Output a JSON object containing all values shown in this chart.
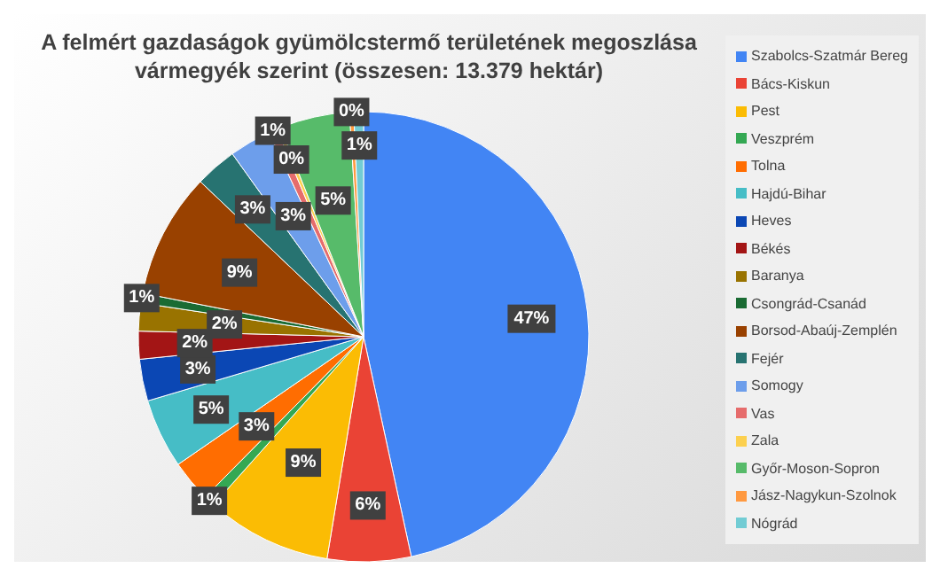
{
  "chart_data": {
    "type": "pie",
    "title": "A felmért gazdaságok gyümölcstermő területének megoszlása vármegyék szerint (összesen: 13.379 hektár)",
    "categories": [
      "Szabolcs-Szatmár Bereg",
      "Bács-Kiskun",
      "Pest",
      "Veszprém",
      "Tolna",
      "Hajdú-Bihar",
      "Heves",
      "Békés",
      "Baranya",
      "Csongrád-Csanád",
      "Borsod-Abaúj-Zemplén",
      "Fejér",
      "Somogy",
      "Vas",
      "Zala",
      "Győr-Moson-Sopron",
      "Jász-Nagykun-Szolnok",
      "Nógrád"
    ],
    "values": [
      46.6,
      6,
      9,
      0.8,
      3,
      5,
      3,
      2,
      2,
      0.7,
      9,
      3,
      3,
      0.6,
      0.3,
      5,
      0.3,
      0.7
    ],
    "value_labels": [
      "47%",
      "6%",
      "9%",
      "1%",
      "3%",
      "5%",
      "3%",
      "2%",
      "2%",
      "1%",
      "9%",
      "3%",
      "3%",
      "1%",
      "0%",
      "5%",
      "0%",
      "1%"
    ],
    "colors": [
      "#4285f4",
      "#ea4335",
      "#fbbc04",
      "#34a853",
      "#ff6d01",
      "#46bdc6",
      "#0b47b4",
      "#a31515",
      "#997300",
      "#1a6b33",
      "#994100",
      "#277371",
      "#6d9eeb",
      "#e66c6c",
      "#fcd04f",
      "#57bb6a",
      "#ff9940",
      "#72ccd4"
    ],
    "legend": "right"
  }
}
